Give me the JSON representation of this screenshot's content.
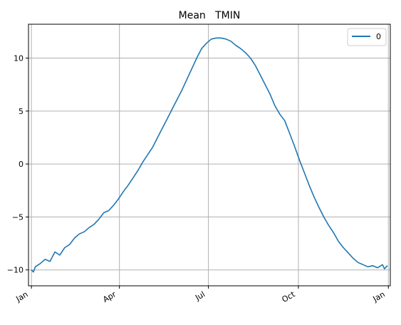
{
  "chart_data": {
    "type": "line",
    "title": "Mean   TMIN",
    "xlabel": "",
    "ylabel": "",
    "x_ticks": [
      {
        "label": "Jan",
        "day": 1
      },
      {
        "label": "Apr",
        "day": 91
      },
      {
        "label": "Jul",
        "day": 182
      },
      {
        "label": "Oct",
        "day": 274
      },
      {
        "label": "Jan",
        "day": 366
      }
    ],
    "y_ticks": [
      {
        "label": "10",
        "value": 10
      },
      {
        "label": "5",
        "value": 5
      },
      {
        "label": "0",
        "value": 0
      },
      {
        "label": "−5",
        "value": -5
      },
      {
        "label": "−10",
        "value": -10
      }
    ],
    "xlim": [
      -2,
      368
    ],
    "ylim": [
      -11.5,
      13.2
    ],
    "grid": true,
    "legend": "top-right",
    "series": [
      {
        "name": "0",
        "color": "#1f77b4",
        "x": [
          1,
          3,
          5,
          10,
          15,
          20,
          25,
          30,
          35,
          40,
          45,
          50,
          55,
          60,
          65,
          70,
          75,
          80,
          85,
          90,
          95,
          100,
          105,
          110,
          115,
          120,
          125,
          130,
          135,
          140,
          145,
          150,
          155,
          160,
          165,
          170,
          175,
          180,
          185,
          190,
          195,
          200,
          205,
          210,
          215,
          220,
          225,
          230,
          235,
          240,
          245,
          250,
          255,
          260,
          265,
          270,
          275,
          280,
          285,
          290,
          295,
          300,
          305,
          310,
          315,
          320,
          325,
          330,
          335,
          340,
          345,
          350,
          355,
          360,
          362,
          365
        ],
        "values": [
          -10.0,
          -10.2,
          -9.7,
          -9.4,
          -9.0,
          -9.2,
          -8.3,
          -8.6,
          -7.9,
          -7.6,
          -7.0,
          -6.6,
          -6.4,
          -6.0,
          -5.7,
          -5.2,
          -4.6,
          -4.4,
          -3.9,
          -3.3,
          -2.6,
          -2.0,
          -1.3,
          -0.6,
          0.2,
          0.9,
          1.6,
          2.5,
          3.4,
          4.3,
          5.2,
          6.1,
          7.0,
          8.0,
          9.0,
          10.0,
          10.9,
          11.4,
          11.8,
          11.9,
          11.9,
          11.8,
          11.6,
          11.2,
          10.9,
          10.5,
          10.0,
          9.3,
          8.4,
          7.5,
          6.6,
          5.5,
          4.7,
          4.1,
          2.9,
          1.7,
          0.4,
          -0.8,
          -2.0,
          -3.1,
          -4.1,
          -5.0,
          -5.8,
          -6.5,
          -7.3,
          -7.9,
          -8.4,
          -8.9,
          -9.3,
          -9.5,
          -9.7,
          -9.6,
          -9.8,
          -9.5,
          -9.9,
          -9.6
        ]
      }
    ]
  }
}
